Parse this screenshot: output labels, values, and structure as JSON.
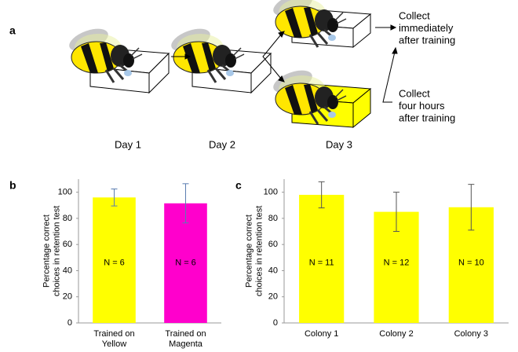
{
  "diagram": {
    "panel_label": "a",
    "days": [
      "Day 1",
      "Day 2",
      "Day 3"
    ],
    "outcomes": [
      "Collect\nimmediately\nafter training",
      "Collect\nfour hours\nafter training"
    ]
  },
  "chart_data": [
    {
      "type": "bar",
      "panel_label": "b",
      "ylabel": "Percentage correct\nchoices in retention test",
      "categories": [
        "Trained on\nYellow",
        "Trained on\nMagenta"
      ],
      "values": [
        96,
        91.5
      ],
      "errors": [
        6.5,
        15
      ],
      "colors": [
        "#ffff00",
        "#ff00cc"
      ],
      "error_color": "#5b7db1",
      "annotations": [
        "N = 6",
        "N = 6"
      ],
      "ylim": [
        0,
        110
      ],
      "yticks": [
        0,
        20,
        40,
        60,
        80,
        100
      ]
    },
    {
      "type": "bar",
      "panel_label": "c",
      "ylabel": "Percentage correct\nchoices in retention test",
      "categories": [
        "Colony 1",
        "Colony 2",
        "Colony 3"
      ],
      "values": [
        98,
        85,
        88.5
      ],
      "errors": [
        10,
        15,
        17.5
      ],
      "colors": [
        "#ffff00",
        "#ffff00",
        "#ffff00"
      ],
      "error_color": "#555555",
      "annotations": [
        "N = 11",
        "N = 12",
        "N = 10"
      ],
      "ylim": [
        0,
        110
      ],
      "yticks": [
        0,
        20,
        40,
        60,
        80,
        100
      ]
    }
  ]
}
